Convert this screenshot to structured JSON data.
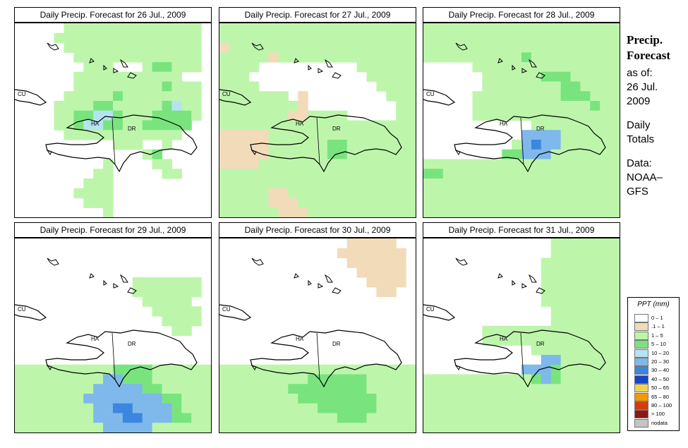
{
  "panels": [
    {
      "title": "Daily Precip. Forecast for  26 Jul., 2009",
      "pattern": [
        "WWWWWGGGGGGGGGGGGGGW",
        "WWWWGGGGGGGGGGGGGGGW",
        "WWWWWGGGGGGGGGGGGGGW",
        "WWWWWWGGGGGGGGGGGGGW",
        "WWWWWWWGGGWWWGLLGGGW",
        "WWWWWWGGGGGGGGGGGWWW",
        "WWWWWWGGGGGGGGGLGGGW",
        "WWWWWGGGGGLGGGGGGGGW",
        "WWWWGGGGLLGGGGGLBGGW",
        "WWWWGGLLBBLGGGLLLLGW",
        "WWWWGGLBBLLGGLLLLLWW",
        "WWWWWGGGGGGGGGGGGWWW",
        "WWWWWWWWWWGGGWWGWWWW",
        "WWWWWWWWWWWWWGLWWWWW",
        "WWWWWWWWWGWWWWGGWWWW",
        "WWWWWWWWGGWWWWWGGWWW",
        "WWWWWWWGGGWWWWWWWWWW",
        "WWWWWWGGGGWWWWWWWWWW",
        "WWWWWWWGGGWWWWWWWWWW",
        "WWWWWWWWWGWWWWWWWWWW"
      ]
    },
    {
      "title": "Daily Precip. Forecast for  27 Jul., 2009",
      "pattern": [
        "GGGGGGGGGGGGGGGGGGGG",
        "GGGGGGGGGGGGGGGGGGGG",
        "TGGGGGGGGGGGGGGGGGGG",
        "GGGGGTGGGGGGGGGGGGGG",
        "GGGGWWWWWWWWWWGGGGGG",
        "GGGWWWWWWWWWWWWGGGGG",
        "GGGGWWWWWWWWWWWWGGGG",
        "GGGGGGGWTWWWWWWWWGGG",
        "GGGGGGGGTWWWWWWWWWGG",
        "GGGGGGGTTGGGGWWWWWGG",
        "GGGGGGGGGGGGGGGGGGGG",
        "TTTTTGGGGGGGGGGGGGGG",
        "TTTTTGGGGGGLLGGGGGGG",
        "TTTTTGGGGGGLLGGGGGGG",
        "TTTTGGGGGGGGGGGGGGGG",
        "GGGGGGGGGGGGGGGGGGGG",
        "GGGGGGGGGGGGGGGGGGGG",
        "GGGGGTTGGGGGGGGGGGGG",
        "GGGGGTTTGGGGGGGGGGGG",
        "GGGGGGTTTGGGGGGGGGGG"
      ]
    },
    {
      "title": "Daily Precip. Forecast for  28 Jul., 2009",
      "pattern": [
        "GGGGGGGGGGGGGGGGGGGG",
        "GGGGGGGGGGGGGGGGGGGG",
        "GGGGGGGGGGGGGGGGGGGG",
        "GGGGGGGGGGLGGGGGGGGG",
        "WWWWWGGGGGGGGGGGGGGG",
        "WWWWWWGGGGGGLLLGGGGG",
        "WWWWWWGGGGGGGGLLGGGG",
        "WWWWWGGGGGGGGGLLLGGG",
        "WWWWWGGGGGGGGGGGGLGG",
        "WWWWWGGGGGGGGGGGGGGG",
        "WWWWWWWWWWWGGGGGGGGG",
        "WWWWWWWWWWMMMMGGGGGG",
        "WWWWWWWWWGMDMMGGGGGG",
        "WWWWWWWWLLMMMGGGGGGG",
        "GGGGGGGGGGGGGGGGGGGG",
        "LLGGGGGGGGGGGGGGGGGG",
        "GGGGGGGGGGGGGGGGGGGG",
        "GGGGGGGGGGGGGGGGGGGG",
        "GGGGGGGGGGGGGGGGGGGG",
        "GGGGGGGGGGGGGGGGGGGG"
      ]
    },
    {
      "title": "Daily Precip. Forecast for  29 Jul., 2009",
      "pattern": [
        "WWWWWWWWWWWWWWWWWWWW",
        "WWWWWWWWWWWWWWWWWWWW",
        "WWWWWWWWWWWWWWWWWWWW",
        "WWWWWWWWWWWWWWWWWWWW",
        "WWWWWWWWWWWWGGGGGGGW",
        "WWWWWWWWWWWWGGGGGGGW",
        "WWWWWWWWWWWWWGGGGGWW",
        "WWWWWWWWWWWWWWGGGGGW",
        "WWWWWWWWWWWWWWWGGGGW",
        "WWWWWWWWWWWWWWWWGGWW",
        "WWWWWWWWWWWWWWWWWWWW",
        "WWWWWWWWWWWWWWWWWWWW",
        "WWWWWWWWWWWWWWWWWWWW",
        "GGGGGGGGGGLLLLGGGGGG",
        "GGGGGGGGGMMLLLGGGGGG",
        "GGGGGGGGMMMMMLLGGGGG",
        "GGGGGGGMMMMMMMMLLGGG",
        "GGGGGGGGMMDDMMMMLGGG",
        "GGGGGGGGMMMDDMMMLLGG",
        "GGGGGGGGGMMMMMGGGGGG"
      ]
    },
    {
      "title": "Daily Precip. Forecast for  30 Jul., 2009",
      "pattern": [
        "WWWWWWWWWWWWWTTTTTWW",
        "WWWWWWWWWWWWTTTTTTTW",
        "WWWWWWWWWWWWWTTTTTTW",
        "WWWWWWWWWWWWWWTTTTTW",
        "WWWWWWWWWWWWWWWTTTTW",
        "WWWWWWWWWWWWWWWWTTWW",
        "WWWWWWWWWWWWWWWWWWWW",
        "WWWWWWWWWWWWWWWWWWWW",
        "WWWWWWWWWWWWWWWWWWWW",
        "WWWWWWWWWWWWWWWWWWWW",
        "WWWWWWWWWWWWWWWWWWWW",
        "WWWWWWWWWWWWWWWWWWWW",
        "WWWWWWWWWWWWWWWWWWWW",
        "GGGGGGGGGGGGGGGGGGGG",
        "GGGGGGGGGLLLLLLGGGGG",
        "GGGGGGGLLLLLLLLGGGGG",
        "GGGGGGGGLLLLLLLLGGGG",
        "GGGGGGGGGGLLLLLLGGGG",
        "GGGGGGGGGGGGLLLGGGGG",
        "GGGGGGGGGGGGGGGGGGGG"
      ]
    },
    {
      "title": "Daily Precip. Forecast for  31 Jul., 2009",
      "pattern": [
        "WWWWWWWWWWWWWGGGGGGG",
        "WWWWWWWWWWWWWGGGGGGG",
        "WWWWWWWWWWWWGGGGGGGG",
        "WWWWWWWWWWWWGGGGGGGG",
        "WWWWWWWWWWWWGGGGGGGG",
        "WWWWWWWWWWWWGGGGGGGG",
        "WWWWWWWWWWWWGGGGGGGG",
        "WWWWWWWWWWWWWGGGGGGG",
        "WWWWWWWWWWWWWGGGGGGG",
        "WWWWWWGGGGGGGGGGGGGG",
        "WWWWWWGGGGGGGGGGGGGG",
        "WWWWWWWWWWWGGGGGGGGG",
        "WWWWWWWWWWWWMMGGGGGG",
        "WWWWWWWWWWMMMLGGGGGG",
        "GGGGGGGGGGGLMLGGGGGG",
        "GGGGGGGGGGGGGGGGGGGG",
        "GGGGGGGGGGGGGGGGGGGG",
        "GGGGGGGGGGGGGGGGGGGG",
        "GGGGGGGGGGGGGGGGGGGG",
        "GGGGGGGGGGGGGGGGGGGG"
      ]
    }
  ],
  "country_labels": [
    "CU",
    "HA",
    "DR"
  ],
  "sidebar": {
    "title_line1": "Precip.",
    "title_line2": "Forecast",
    "asof": "as of:",
    "date_line1": "26 Jul.",
    "date_line2": "2009",
    "totals_line1": "Daily",
    "totals_line2": "Totals",
    "data_line1": "Data:",
    "data_line2": "NOAA–",
    "data_line3": "GFS"
  },
  "legend": {
    "title": "PPT (mm)",
    "items": [
      {
        "label": "0 – 1",
        "color": "#ffffff"
      },
      {
        "label": ".1 – 1",
        "color": "#f2dbb9"
      },
      {
        "label": "1 – 5",
        "color": "#bdf6ab"
      },
      {
        "label": "5 – 10",
        "color": "#79e47e"
      },
      {
        "label": "10 – 20",
        "color": "#b5e3f1"
      },
      {
        "label": "20 – 30",
        "color": "#7fb8ea"
      },
      {
        "label": "30 – 40",
        "color": "#3d86e0"
      },
      {
        "label": "40 – 50",
        "color": "#1346c9"
      },
      {
        "label": "50 – 65",
        "color": "#f6d34e"
      },
      {
        "label": "65 – 80",
        "color": "#f49a00"
      },
      {
        "label": "80 – 100",
        "color": "#d73a0d"
      },
      {
        "label": "> 100",
        "color": "#8b1a10"
      },
      {
        "label": "nodata",
        "color": "#c4c4c4"
      }
    ]
  },
  "cell_colors": {
    "W": "#ffffff",
    "T": "#f2dbb9",
    "G": "#bdf6ab",
    "L": "#79e47e",
    "B": "#b5e3f1",
    "M": "#7fb8ea",
    "D": "#3d86e0"
  }
}
